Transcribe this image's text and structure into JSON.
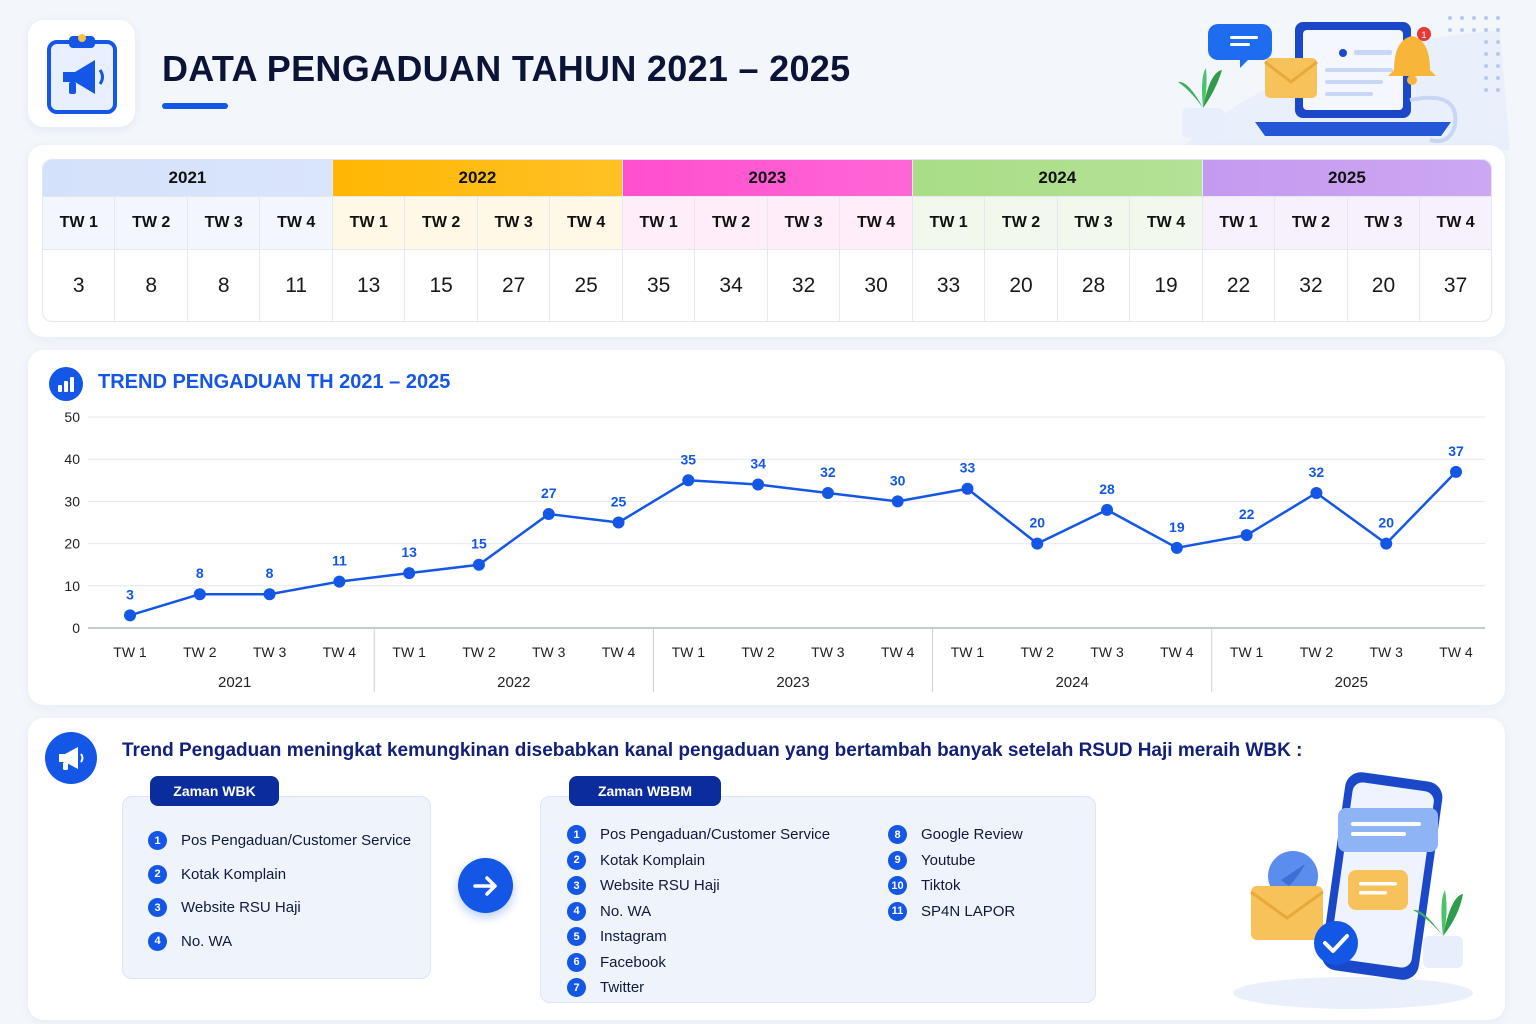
{
  "header": {
    "title": "DATA PENGADUAN TAHUN 2021 – 2025"
  },
  "table": {
    "years": [
      {
        "label": "2021",
        "color": "#d4e1fa"
      },
      {
        "label": "2022",
        "color": "#ffb703"
      },
      {
        "label": "2023",
        "color": "#ff4fcf"
      },
      {
        "label": "2024",
        "color": "#a9dd86"
      },
      {
        "label": "2025",
        "color": "#c49af0"
      }
    ],
    "quarters": [
      "TW 1",
      "TW 2",
      "TW 3",
      "TW 4"
    ],
    "values": [
      3,
      8,
      8,
      11,
      13,
      15,
      27,
      25,
      35,
      34,
      32,
      30,
      33,
      20,
      28,
      19,
      22,
      32,
      20,
      37
    ]
  },
  "chart": {
    "title": "TREND PENGADUAN TH 2021 – 2025"
  },
  "chart_data": {
    "type": "line",
    "title": "TREND PENGADUAN TH 2021 – 2025",
    "groups": [
      "2021",
      "2022",
      "2023",
      "2024",
      "2025"
    ],
    "categories": [
      "TW 1",
      "TW 2",
      "TW 3",
      "TW 4",
      "TW 1",
      "TW 2",
      "TW 3",
      "TW 4",
      "TW 1",
      "TW 2",
      "TW 3",
      "TW 4",
      "TW 1",
      "TW 2",
      "TW 3",
      "TW 4",
      "TW 1",
      "TW 2",
      "TW 3",
      "TW 4"
    ],
    "values": [
      3,
      8,
      8,
      11,
      13,
      15,
      27,
      25,
      35,
      34,
      32,
      30,
      33,
      20,
      28,
      19,
      22,
      32,
      20,
      37
    ],
    "ylim": [
      0,
      50
    ],
    "yticks": [
      0,
      10,
      20,
      30,
      40,
      50
    ],
    "grid": true,
    "color": "#1456e6"
  },
  "bottom": {
    "heading": "Trend Pengaduan meningkat kemungkinan disebabkan kanal pengaduan yang bertambah banyak setelah RSUD Haji meraih WBK :",
    "wbk": {
      "tag": "Zaman WBK",
      "items": [
        "Pos Pengaduan/Customer Service",
        "Kotak Komplain",
        "Website RSU Haji",
        "No. WA"
      ]
    },
    "wbbm": {
      "tag": "Zaman WBBM",
      "items_left": [
        "Pos Pengaduan/Customer Service",
        "Kotak Komplain",
        "Website RSU Haji",
        "No. WA",
        "Instagram",
        "Facebook",
        "Twitter"
      ],
      "items_right": [
        "Google Review",
        "Youtube",
        "Tiktok",
        "SP4N LAPOR"
      ]
    }
  }
}
